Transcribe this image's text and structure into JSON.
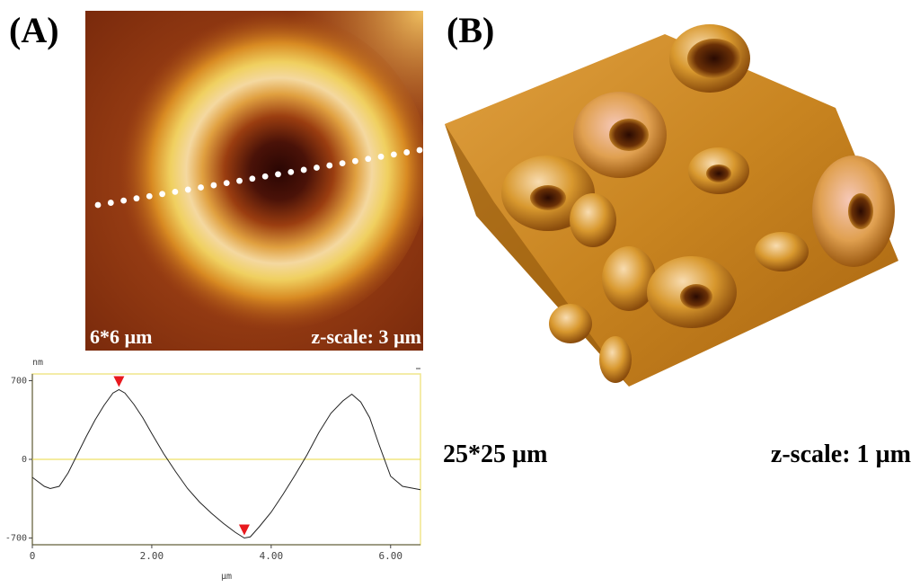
{
  "panels": {
    "a": {
      "label": "(A)",
      "scan_size": "6*6 µm",
      "z_scale": "z-scale: 3 µm"
    },
    "b": {
      "label": "(B)",
      "scan_size": "25*25 µm",
      "z_scale": "z-scale: 1 µm"
    }
  },
  "colors": {
    "afm_dark": "#3a0a04",
    "afm_mid": "#c8641c",
    "afm_bright": "#f2dc9a",
    "profile_axis": "#f0e68c",
    "marker": "#e8191e"
  },
  "chart_data": {
    "type": "line",
    "title": "",
    "xlabel": "µm",
    "ylabel": "nm",
    "xlim": [
      0,
      6.5
    ],
    "ylim": [
      -760,
      760
    ],
    "x_ticks": [
      0,
      2,
      4,
      6
    ],
    "x_tick_labels": [
      "0",
      "2.00",
      "4.00",
      "6.00"
    ],
    "y_ticks": [
      700,
      0,
      -700
    ],
    "y_tick_labels": [
      "700",
      "0",
      "-700"
    ],
    "grid": false,
    "series": [
      {
        "x": [
          0,
          0.2,
          0.3,
          0.45,
          0.6,
          0.75,
          0.9,
          1.05,
          1.2,
          1.35,
          1.45,
          1.55,
          1.7,
          1.85,
          2.0,
          2.2,
          2.4,
          2.6,
          2.8,
          3.0,
          3.2,
          3.4,
          3.55,
          3.65,
          3.8,
          4.0,
          4.2,
          4.4,
          4.6,
          4.8,
          5.0,
          5.2,
          5.35,
          5.5,
          5.65,
          5.8,
          6.0,
          6.2,
          6.5
        ],
        "y": [
          -160,
          -240,
          -260,
          -240,
          -120,
          40,
          200,
          350,
          480,
          590,
          620,
          590,
          490,
          370,
          230,
          50,
          -110,
          -260,
          -380,
          -480,
          -570,
          -650,
          -700,
          -690,
          -600,
          -470,
          -310,
          -140,
          40,
          240,
          410,
          520,
          580,
          510,
          370,
          140,
          -150,
          -240,
          -270
        ]
      }
    ],
    "markers": [
      {
        "x": 1.45,
        "y": 620
      },
      {
        "x": 3.55,
        "y": -700
      }
    ]
  }
}
